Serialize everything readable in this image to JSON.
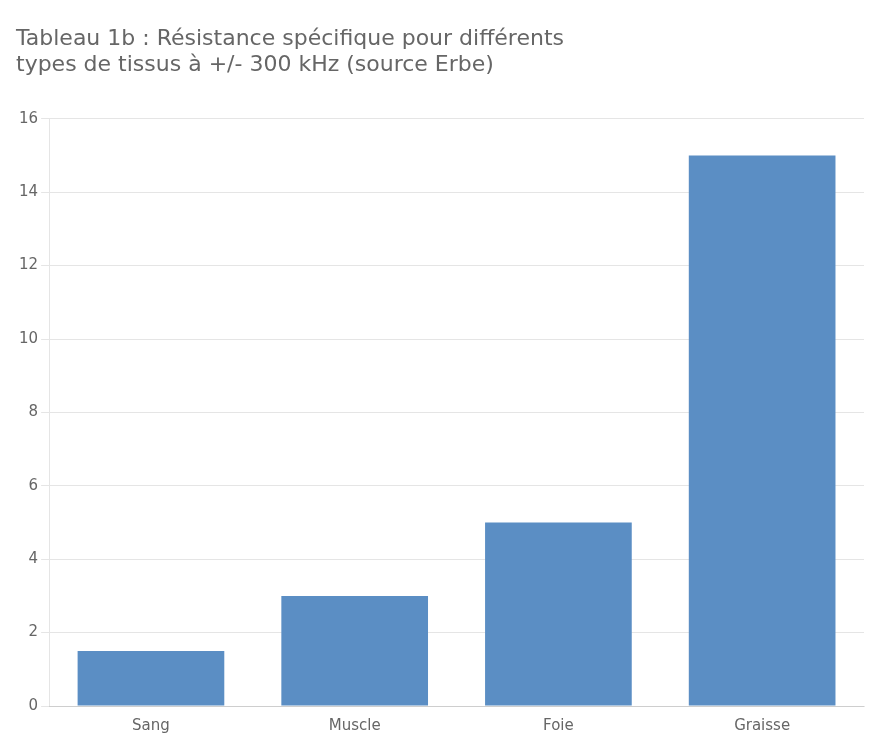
{
  "chart_data": {
    "type": "bar",
    "title": [
      "Tableau 1b : Résistance spécifique pour différents",
      "types de tissus à +/- 300 kHz (source Erbe)"
    ],
    "categories": [
      "Sang",
      "Muscle",
      "Foie",
      "Graisse"
    ],
    "values": [
      1.5,
      3.0,
      5.0,
      15.0
    ],
    "color": "#5b8ec4",
    "ylim": [
      0,
      16
    ],
    "yticks": [
      0,
      2,
      4,
      6,
      8,
      10,
      12,
      14,
      16
    ],
    "grid": true
  }
}
